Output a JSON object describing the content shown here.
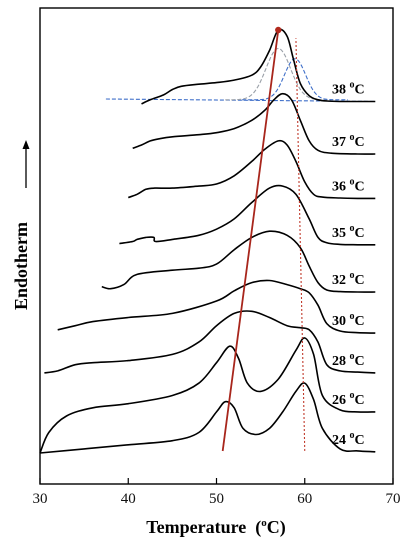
{
  "chart_data": {
    "type": "line",
    "xlabel": "Temperature",
    "xlabel_unit_prefix": "(",
    "xlabel_unit_sup": "o",
    "xlabel_unit_suffix": "C)",
    "ylabel": "Endotherm",
    "xlim": [
      30,
      70
    ],
    "x_ticks": [
      30,
      40,
      50,
      60,
      70
    ],
    "grid": false,
    "legend": "none",
    "series": [
      {
        "name": "24 oC",
        "label_num": "24 ",
        "label_sup": "o",
        "label_unit": "C",
        "x": [
          30,
          35,
          40,
          45,
          48,
          50,
          51,
          52,
          53,
          54.5,
          56,
          57.5,
          59,
          60,
          61,
          62,
          64,
          66,
          68
        ],
        "y": [
          0,
          0.1,
          0.2,
          0.3,
          0.5,
          1.0,
          1.25,
          1.1,
          0.6,
          0.45,
          0.6,
          1.0,
          1.5,
          1.7,
          1.3,
          0.6,
          0.1,
          0.05,
          0.03
        ]
      },
      {
        "name": "26 oC",
        "label_num": "26 ",
        "label_sup": "o",
        "label_unit": "C",
        "x": [
          30,
          31,
          33,
          36,
          40,
          45,
          48,
          50,
          51.5,
          52.5,
          53.5,
          55,
          57,
          59,
          60,
          61,
          62,
          64,
          66,
          68
        ],
        "y": [
          0,
          0.5,
          0.9,
          1.1,
          1.2,
          1.4,
          1.7,
          2.2,
          2.6,
          2.3,
          1.7,
          1.5,
          1.8,
          2.5,
          2.8,
          2.4,
          1.4,
          1.05,
          1.0,
          1.0
        ]
      },
      {
        "name": "28 oC",
        "label_num": "28 ",
        "label_sup": "o",
        "label_unit": "C",
        "x": [
          30.5,
          32,
          34,
          36,
          40,
          45,
          48,
          50,
          52,
          54,
          56,
          58,
          59.5,
          60.5,
          61.5,
          62.5,
          64,
          66,
          68
        ],
        "y": [
          1.95,
          2.0,
          2.15,
          2.2,
          2.25,
          2.4,
          2.7,
          3.1,
          3.4,
          3.45,
          3.3,
          3.1,
          3.05,
          3.0,
          2.7,
          2.15,
          2.0,
          1.97,
          1.95
        ]
      },
      {
        "name": "30 oC",
        "label_num": "30 ",
        "label_sup": "o",
        "label_unit": "C",
        "x": [
          32,
          34,
          36,
          40,
          45,
          50,
          52,
          54,
          56,
          58,
          59.5,
          60.5,
          61.5,
          62.5,
          64,
          66,
          68
        ],
        "y": [
          3.0,
          3.1,
          3.2,
          3.3,
          3.4,
          3.7,
          3.95,
          4.15,
          4.2,
          4.1,
          4.0,
          3.9,
          3.6,
          3.15,
          2.97,
          2.93,
          2.92
        ]
      },
      {
        "name": "32 oC",
        "label_num": "32 ",
        "label_sup": "o",
        "label_unit": "C",
        "x": [
          37,
          38,
          39.5,
          41,
          45,
          48,
          50,
          52,
          54,
          56,
          58,
          59.5,
          60.5,
          61.5,
          62.5,
          64,
          66,
          68
        ],
        "y": [
          4.05,
          4.0,
          4.1,
          4.35,
          4.45,
          4.5,
          4.6,
          4.95,
          5.25,
          5.4,
          5.3,
          5.0,
          4.55,
          4.15,
          3.97,
          3.93,
          3.92,
          3.92
        ]
      },
      {
        "name": "35 oC",
        "label_num": "35 ",
        "label_sup": "o",
        "label_unit": "C",
        "x": [
          39,
          40.5,
          41,
          42,
          42.9,
          43.1,
          45,
          48,
          50,
          52,
          54,
          56,
          57.5,
          59,
          60.5,
          61.5,
          62.5,
          64,
          66,
          68
        ],
        "y": [
          5.1,
          5.15,
          5.2,
          5.25,
          5.25,
          5.15,
          5.2,
          5.3,
          5.45,
          5.7,
          6.1,
          6.45,
          6.5,
          6.3,
          5.7,
          5.25,
          5.12,
          5.08,
          5.07,
          5.07
        ]
      },
      {
        "name": "36 oC",
        "label_num": "36 ",
        "label_sup": "o",
        "label_unit": "C",
        "x": [
          40,
          41,
          42,
          43,
          45,
          48,
          50,
          52,
          54,
          55.5,
          57,
          58,
          59,
          60,
          61,
          62,
          64,
          66,
          68
        ],
        "y": [
          6.22,
          6.3,
          6.42,
          6.45,
          6.45,
          6.5,
          6.55,
          6.75,
          7.1,
          7.4,
          7.6,
          7.5,
          7.1,
          6.6,
          6.3,
          6.23,
          6.21,
          6.2,
          6.2
        ]
      },
      {
        "name": "37 oC",
        "label_num": "37 ",
        "label_sup": "o",
        "label_unit": "C",
        "x": [
          40.5,
          41.5,
          42.5,
          43.5,
          45,
          48,
          50,
          52,
          54,
          55.5,
          56.5,
          57.5,
          58.5,
          59.5,
          60.5,
          61.5,
          63,
          66,
          68
        ],
        "y": [
          7.42,
          7.5,
          7.6,
          7.65,
          7.7,
          7.75,
          7.8,
          7.9,
          8.1,
          8.35,
          8.6,
          8.75,
          8.6,
          8.1,
          7.6,
          7.37,
          7.3,
          7.28,
          7.28
        ]
      },
      {
        "name": "38 oC",
        "label_num": "38 ",
        "label_sup": "o",
        "label_unit": "C",
        "x": [
          41.5,
          42.5,
          44,
          45,
          46,
          48,
          50,
          52,
          54,
          55,
          56,
          57,
          58,
          58.7,
          59.5,
          60.5,
          61.5,
          62.5,
          64,
          66,
          68
        ],
        "y": [
          8.5,
          8.6,
          8.72,
          8.85,
          8.93,
          8.98,
          9.02,
          9.08,
          9.2,
          9.4,
          9.8,
          10.3,
          10.15,
          9.6,
          9.0,
          8.7,
          8.6,
          8.57,
          8.56,
          8.56,
          8.56
        ]
      }
    ],
    "deconvolution_38": {
      "baseline": {
        "x": [
          42,
          68
        ],
        "y": [
          8.62,
          8.56
        ]
      },
      "peak1": {
        "center": 57.0,
        "height": 1.25,
        "width": 1.4,
        "base": 8.6
      },
      "peak2": {
        "center": 58.9,
        "height": 1.0,
        "width": 1.2,
        "base": 8.6
      }
    },
    "trend_lines": {
      "solid_line": {
        "x": [
          50.7,
          57.0
        ],
        "y": [
          0.05,
          10.3
        ]
      },
      "dotted_line": {
        "x": [
          60.0,
          59.0
        ],
        "y": [
          0.05,
          10.1
        ]
      }
    },
    "colors": {
      "curve": "#000000",
      "trend_solid": "#a8261c",
      "trend_dotted": "#c0392b",
      "decon_grey": "#9aa0a8",
      "decon_blue": "#3f6fc9",
      "marker": "#b22a1e"
    }
  }
}
